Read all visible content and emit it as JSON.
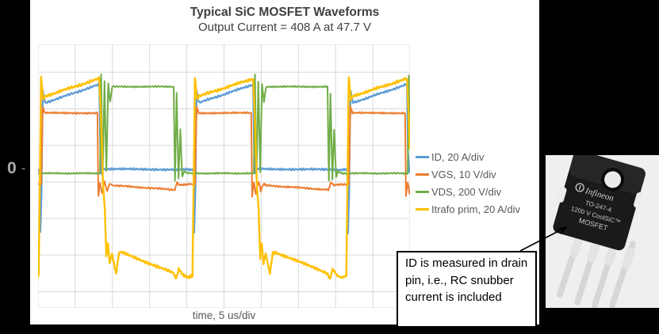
{
  "chart": {
    "title": "Typical SiC MOSFET Waveforms",
    "subtitle": "Output Current = 408 A at 47.7 V",
    "xlabel": "time, 5 us/div",
    "zero_label": "0",
    "zero_tick": "-",
    "legend": [
      {
        "label": "ID, 20 A/div"
      },
      {
        "label": "VGS, 10 V/div"
      },
      {
        "label": "VDS, 200 V/div"
      },
      {
        "label": "Itrafo prim, 20 A/div"
      }
    ]
  },
  "annotation": {
    "text": "ID is measured in drain pin, i.e., RC snubber current is included"
  },
  "mosfet": {
    "brand": "Infineon",
    "model": "TO-247-4",
    "rating": "1200 V CoolSiC™",
    "type": "MOSFET"
  },
  "chart_data": {
    "type": "line",
    "title": "Typical SiC MOSFET Waveforms",
    "subtitle": "Output Current = 408 A at 47.7 V",
    "xlabel": "time, 5 us/div",
    "ylabel": "",
    "x_units": "us",
    "x_per_div": 5,
    "x_divisions": 10,
    "x_range": [
      0,
      50
    ],
    "y_units": "scope divisions relative to marked 0 line",
    "grid": true,
    "legend_position": "right",
    "period_us": 20.68,
    "on_time_us": 7.7,
    "cycle_starts_us": [
      0.53,
      21.21,
      41.89
    ],
    "series": [
      {
        "name": "ID, 20 A/div",
        "color": "#5B9BD5",
        "scale": "20 A/div",
        "noise_div": 0.035,
        "width": 2.2,
        "cycle_points": [
          [
            -1.0,
            0.1
          ],
          [
            -0.32,
            0.1
          ],
          [
            -0.22,
            -1.62
          ],
          [
            -0.06,
            -0.5
          ],
          [
            0.04,
            1.35
          ],
          [
            0.12,
            2.26
          ],
          [
            0.42,
            1.93
          ],
          [
            7.7,
            2.43
          ],
          [
            7.84,
            0.6
          ],
          [
            8.02,
            0.0
          ],
          [
            8.22,
            0.12
          ],
          [
            19.68,
            0.1
          ]
        ]
      },
      {
        "name": "VGS, 10 V/div",
        "color": "#ED7D31",
        "scale": "10 V/div",
        "noise_div": 0.03,
        "width": 2.0,
        "cycle_points": [
          [
            -1.0,
            -0.3
          ],
          [
            -0.1,
            -0.3
          ],
          [
            0.1,
            1.82
          ],
          [
            0.38,
            1.65
          ],
          [
            7.45,
            1.65
          ],
          [
            7.57,
            -0.62
          ],
          [
            7.8,
            -0.25
          ],
          [
            8.05,
            -0.55
          ],
          [
            8.4,
            -0.22
          ],
          [
            8.75,
            -0.48
          ],
          [
            9.1,
            -0.28
          ],
          [
            9.5,
            -0.33
          ],
          [
            17.85,
            -0.45
          ],
          [
            18.15,
            -0.25
          ],
          [
            18.5,
            -0.32
          ],
          [
            19.68,
            -0.3
          ]
        ]
      },
      {
        "name": "VDS, 200 V/div",
        "color": "#70AD47",
        "scale": "200 V/div",
        "noise_div": 0.025,
        "width": 2.0,
        "cycle_points": [
          [
            -1.0,
            0.0
          ],
          [
            7.8,
            0.0
          ],
          [
            7.95,
            2.7
          ],
          [
            8.15,
            -0.15
          ],
          [
            8.4,
            2.52
          ],
          [
            8.65,
            0.05
          ],
          [
            8.9,
            2.45
          ],
          [
            9.15,
            1.95
          ],
          [
            9.45,
            2.37
          ],
          [
            17.7,
            2.37
          ],
          [
            17.88,
            -0.2
          ],
          [
            18.1,
            2.2
          ],
          [
            18.35,
            -0.15
          ],
          [
            18.6,
            1.2
          ],
          [
            18.85,
            -0.1
          ],
          [
            19.1,
            0.05
          ],
          [
            19.68,
            0.0
          ]
        ]
      },
      {
        "name": "Itrafo prim, 20 A/div",
        "color": "#FFC000",
        "scale": "20 A/div",
        "noise_div": 0.045,
        "width": 2.4,
        "cycle_points": [
          [
            -1.0,
            -2.85
          ],
          [
            -0.45,
            -2.8
          ],
          [
            -0.12,
            2.63
          ],
          [
            0.16,
            2.02
          ],
          [
            0.42,
            2.11
          ],
          [
            7.7,
            2.59
          ],
          [
            8.0,
            1.2
          ],
          [
            8.2,
            -0.3
          ],
          [
            8.45,
            -1.0
          ],
          [
            8.65,
            -2.3
          ],
          [
            8.85,
            -1.9
          ],
          [
            9.1,
            -2.45
          ],
          [
            9.4,
            -2.2
          ],
          [
            9.95,
            -2.74
          ],
          [
            10.35,
            -2.18
          ],
          [
            10.7,
            -2.16
          ],
          [
            17.6,
            -2.72
          ],
          [
            18.05,
            -2.88
          ],
          [
            18.38,
            -2.62
          ],
          [
            19.05,
            -2.8
          ],
          [
            19.68,
            -2.85
          ]
        ]
      }
    ]
  }
}
